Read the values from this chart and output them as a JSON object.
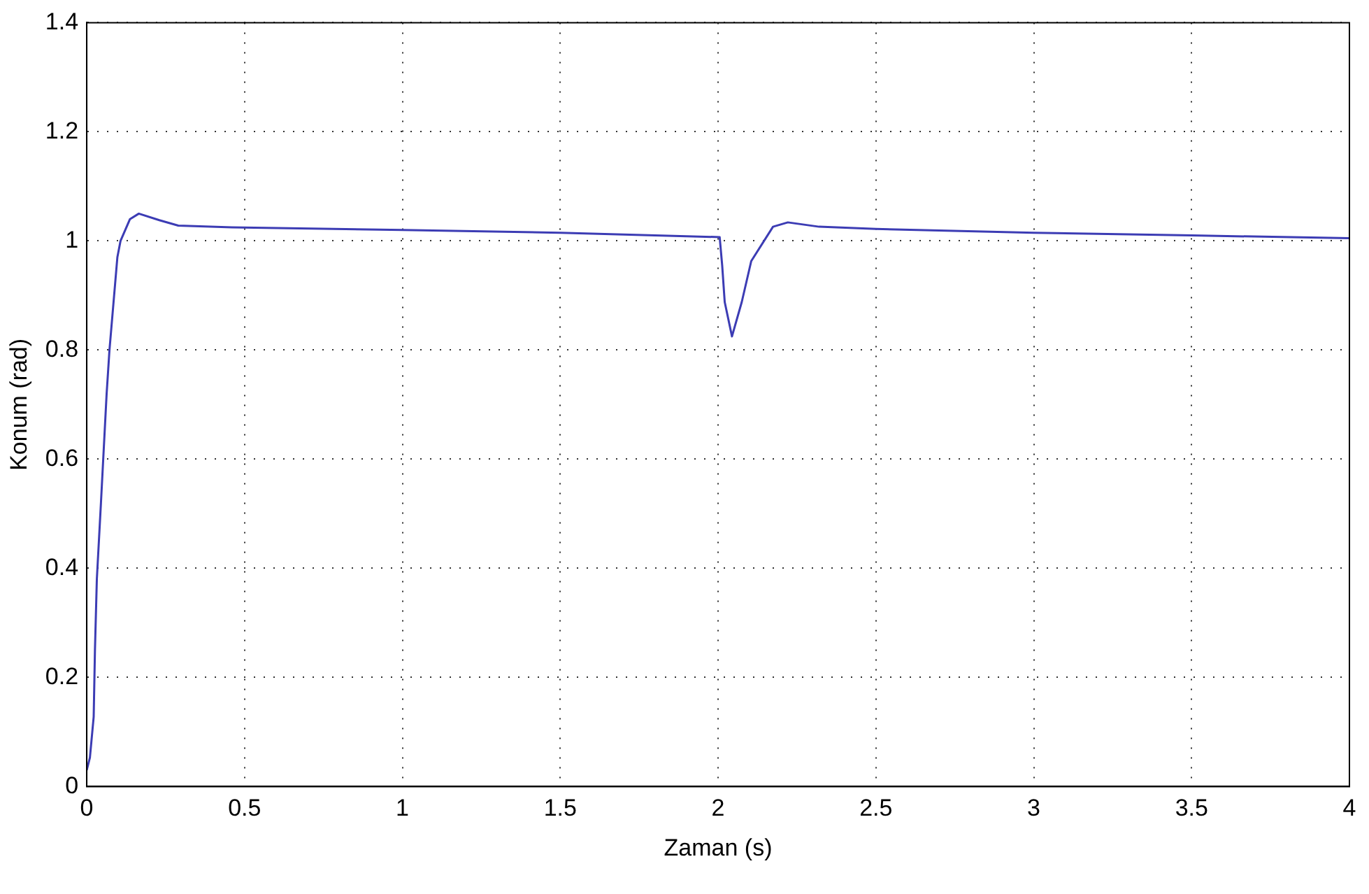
{
  "chart_data": {
    "type": "line",
    "xlabel": "Zaman (s)",
    "ylabel": "Konum (rad)",
    "xlim": [
      0,
      4
    ],
    "ylim": [
      0,
      1.4
    ],
    "xticks": [
      0,
      0.5,
      1,
      1.5,
      2,
      2.5,
      3,
      3.5,
      4
    ],
    "yticks": [
      0,
      0.2,
      0.4,
      0.6,
      0.8,
      1,
      1.2,
      1.4
    ],
    "grid": true,
    "legend": false,
    "marker": "none",
    "line_style": "solid",
    "x": [
      0,
      0.01,
      0.022,
      0.026,
      0.032,
      0.045,
      0.063,
      0.072,
      0.097,
      0.107,
      0.137,
      0.165,
      0.23,
      0.29,
      0.46,
      1,
      1.5,
      2.005,
      2.013,
      2.021,
      2.044,
      2.075,
      2.105,
      2.174,
      2.221,
      2.32,
      2.5,
      3,
      3.5,
      4
    ],
    "series": [
      {
        "color": "#3c3cb4",
        "values": [
          0.03,
          0.053,
          0.128,
          0.25,
          0.38,
          0.52,
          0.72,
          0.8,
          0.97,
          1,
          1.04,
          1.05,
          1.038,
          1.028,
          1.025,
          1.02,
          1.015,
          1.007,
          0.955,
          0.888,
          0.825,
          0.888,
          0.963,
          1.026,
          1.034,
          1.026,
          1.022,
          1.015,
          1.01,
          1.005
        ]
      }
    ]
  }
}
